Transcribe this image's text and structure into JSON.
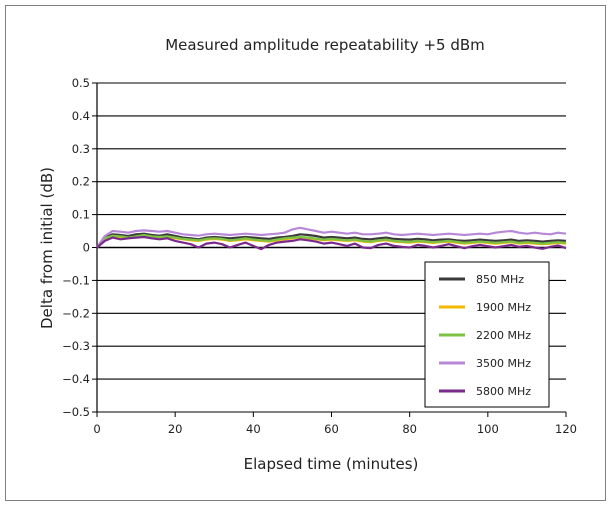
{
  "chart_data": {
    "type": "line",
    "title": "Measured amplitude repeatability +5 dBm",
    "xlabel": "Elapsed time (minutes)",
    "ylabel": "Delta from initial (dB)",
    "xlim": [
      0,
      120
    ],
    "ylim": [
      -0.5,
      0.5
    ],
    "x_ticks": [
      "0",
      "20",
      "40",
      "60",
      "80",
      "100",
      "120"
    ],
    "y_ticks": [
      "0.5",
      "0.4",
      "0.3",
      "0.2",
      "0.1",
      "0",
      "−0.1",
      "−0.2",
      "−0.3",
      "−0.4",
      "−0.5"
    ],
    "grid": "horizontal",
    "legend_position": "bottom-right",
    "x": [
      0,
      2,
      4,
      6,
      8,
      10,
      12,
      14,
      16,
      18,
      20,
      22,
      24,
      26,
      28,
      30,
      32,
      34,
      36,
      38,
      40,
      42,
      44,
      46,
      48,
      50,
      52,
      54,
      56,
      58,
      60,
      62,
      64,
      66,
      68,
      70,
      72,
      74,
      76,
      78,
      80,
      82,
      84,
      86,
      88,
      90,
      92,
      94,
      96,
      98,
      100,
      102,
      104,
      106,
      108,
      110,
      112,
      114,
      116,
      118,
      120
    ],
    "series": [
      {
        "name": "850  MHz",
        "color": "#3a3a3a",
        "values": [
          0,
          0.03,
          0.04,
          0.038,
          0.035,
          0.04,
          0.042,
          0.038,
          0.036,
          0.04,
          0.035,
          0.03,
          0.028,
          0.025,
          0.03,
          0.032,
          0.03,
          0.028,
          0.03,
          0.032,
          0.03,
          0.028,
          0.026,
          0.03,
          0.032,
          0.035,
          0.04,
          0.038,
          0.035,
          0.03,
          0.032,
          0.03,
          0.028,
          0.03,
          0.026,
          0.025,
          0.028,
          0.03,
          0.026,
          0.025,
          0.024,
          0.026,
          0.025,
          0.022,
          0.024,
          0.025,
          0.022,
          0.02,
          0.022,
          0.024,
          0.022,
          0.02,
          0.022,
          0.024,
          0.02,
          0.022,
          0.02,
          0.018,
          0.02,
          0.022,
          0.02
        ]
      },
      {
        "name": "1900  MHz",
        "color": "#f5b800",
        "values": [
          0,
          0.025,
          0.035,
          0.03,
          0.028,
          0.032,
          0.035,
          0.03,
          0.03,
          0.032,
          0.028,
          0.025,
          0.022,
          0.02,
          0.024,
          0.026,
          0.024,
          0.02,
          0.022,
          0.025,
          0.022,
          0.02,
          0.018,
          0.022,
          0.025,
          0.028,
          0.03,
          0.028,
          0.025,
          0.022,
          0.024,
          0.022,
          0.02,
          0.022,
          0.018,
          0.016,
          0.02,
          0.022,
          0.018,
          0.016,
          0.015,
          0.018,
          0.016,
          0.014,
          0.016,
          0.018,
          0.015,
          0.012,
          0.014,
          0.016,
          0.014,
          0.012,
          0.014,
          0.016,
          0.012,
          0.014,
          0.012,
          0.01,
          0.012,
          0.014,
          0.012
        ]
      },
      {
        "name": "2200  MHz",
        "color": "#7dc242",
        "values": [
          0,
          0.028,
          0.036,
          0.034,
          0.03,
          0.034,
          0.038,
          0.034,
          0.032,
          0.034,
          0.03,
          0.026,
          0.024,
          0.022,
          0.026,
          0.028,
          0.026,
          0.022,
          0.024,
          0.028,
          0.024,
          0.022,
          0.02,
          0.024,
          0.028,
          0.03,
          0.032,
          0.03,
          0.027,
          0.024,
          0.026,
          0.024,
          0.022,
          0.024,
          0.02,
          0.018,
          0.022,
          0.024,
          0.02,
          0.018,
          0.017,
          0.02,
          0.018,
          0.016,
          0.018,
          0.02,
          0.017,
          0.014,
          0.016,
          0.018,
          0.016,
          0.014,
          0.016,
          0.018,
          0.014,
          0.016,
          0.014,
          0.012,
          0.014,
          0.016,
          0.014
        ]
      },
      {
        "name": "3500  MHz",
        "color": "#b888d8",
        "values": [
          0,
          0.035,
          0.05,
          0.048,
          0.045,
          0.05,
          0.052,
          0.05,
          0.048,
          0.05,
          0.045,
          0.04,
          0.038,
          0.036,
          0.04,
          0.042,
          0.04,
          0.038,
          0.04,
          0.042,
          0.04,
          0.038,
          0.04,
          0.042,
          0.045,
          0.055,
          0.06,
          0.055,
          0.05,
          0.045,
          0.048,
          0.045,
          0.042,
          0.045,
          0.04,
          0.04,
          0.042,
          0.045,
          0.04,
          0.038,
          0.04,
          0.042,
          0.04,
          0.038,
          0.04,
          0.042,
          0.04,
          0.038,
          0.04,
          0.042,
          0.04,
          0.045,
          0.048,
          0.05,
          0.045,
          0.042,
          0.045,
          0.042,
          0.04,
          0.045,
          0.042
        ]
      },
      {
        "name": "5800  MHz",
        "color": "#7a2a8c",
        "values": [
          0,
          0.02,
          0.03,
          0.025,
          0.028,
          0.03,
          0.032,
          0.028,
          0.025,
          0.028,
          0.02,
          0.015,
          0.01,
          0.0,
          0.012,
          0.015,
          0.01,
          0.0,
          0.008,
          0.015,
          0.005,
          -0.005,
          0.008,
          0.015,
          0.018,
          0.02,
          0.025,
          0.022,
          0.018,
          0.012,
          0.015,
          0.01,
          0.005,
          0.012,
          0.0,
          -0.002,
          0.008,
          0.012,
          0.005,
          0.002,
          0.0,
          0.008,
          0.005,
          0.0,
          0.005,
          0.01,
          0.004,
          -0.002,
          0.004,
          0.008,
          0.004,
          0.0,
          0.004,
          0.008,
          0.002,
          0.005,
          0.0,
          -0.004,
          0.002,
          0.006,
          -0.002
        ]
      }
    ]
  }
}
